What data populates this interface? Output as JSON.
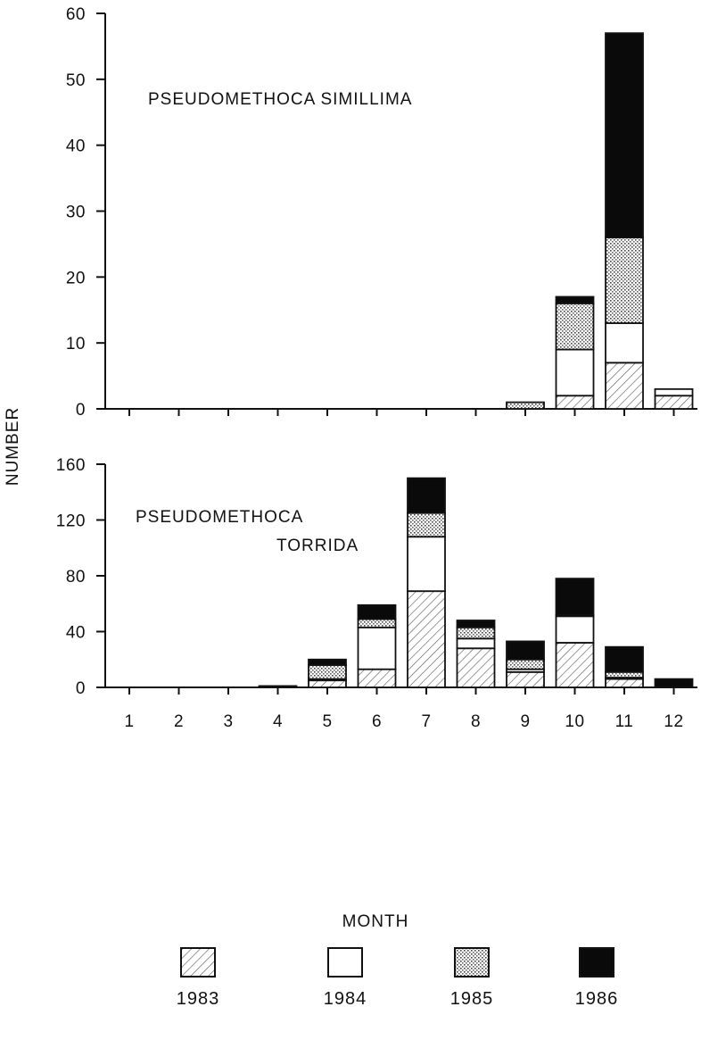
{
  "axis": {
    "ylabel": "NUMBER",
    "xlabel": "MONTH"
  },
  "legend": [
    {
      "label": "1983",
      "pattern": "hatch"
    },
    {
      "label": "1984",
      "pattern": "white"
    },
    {
      "label": "1985",
      "pattern": "dots"
    },
    {
      "label": "1986",
      "pattern": "black"
    }
  ],
  "colors": {
    "ink": "#111111",
    "paper": "#ffffff",
    "black_fill": "#0a0a0a"
  },
  "chart_data": [
    {
      "type": "bar",
      "stacked": true,
      "title": "PSEUDOMETHOCA SIMILLIMA",
      "categories": [
        "1",
        "2",
        "3",
        "4",
        "5",
        "6",
        "7",
        "8",
        "9",
        "10",
        "11",
        "12"
      ],
      "series": [
        {
          "name": "1983",
          "values": [
            0,
            0,
            0,
            0,
            0,
            0,
            0,
            0,
            0,
            2,
            7,
            2
          ]
        },
        {
          "name": "1984",
          "values": [
            0,
            0,
            0,
            0,
            0,
            0,
            0,
            0,
            0,
            7,
            6,
            1
          ]
        },
        {
          "name": "1985",
          "values": [
            0,
            0,
            0,
            0,
            0,
            0,
            0,
            0,
            1,
            7,
            13,
            0
          ]
        },
        {
          "name": "1986",
          "values": [
            0,
            0,
            0,
            0,
            0,
            0,
            0,
            0,
            0,
            1,
            31,
            0
          ]
        }
      ],
      "ylim": [
        0,
        60
      ],
      "yticks": [
        0,
        10,
        20,
        30,
        40,
        50,
        60
      ],
      "xlabel": "",
      "ylabel": "NUMBER",
      "grid": false
    },
    {
      "type": "bar",
      "stacked": true,
      "title": "PSEUDOMETHOCA TORRIDA",
      "title_lines": [
        "PSEUDOMETHOCA",
        "TORRIDA"
      ],
      "categories": [
        "1",
        "2",
        "3",
        "4",
        "5",
        "6",
        "7",
        "8",
        "9",
        "10",
        "11",
        "12"
      ],
      "series": [
        {
          "name": "1983",
          "values": [
            0,
            0,
            0,
            0,
            5,
            13,
            69,
            28,
            11,
            32,
            6,
            0
          ]
        },
        {
          "name": "1984",
          "values": [
            0,
            0,
            0,
            0,
            1,
            30,
            39,
            7,
            2,
            19,
            1,
            0
          ]
        },
        {
          "name": "1985",
          "values": [
            0,
            0,
            0,
            0,
            10,
            6,
            17,
            8,
            7,
            1,
            4,
            0
          ]
        },
        {
          "name": "1986",
          "values": [
            0,
            0,
            0,
            1,
            4,
            10,
            25,
            5,
            13,
            26,
            18,
            6
          ]
        }
      ],
      "ylim": [
        0,
        160
      ],
      "yticks": [
        0,
        40,
        80,
        120,
        160
      ],
      "xlabel": "MONTH",
      "ylabel": "NUMBER",
      "grid": false
    }
  ]
}
